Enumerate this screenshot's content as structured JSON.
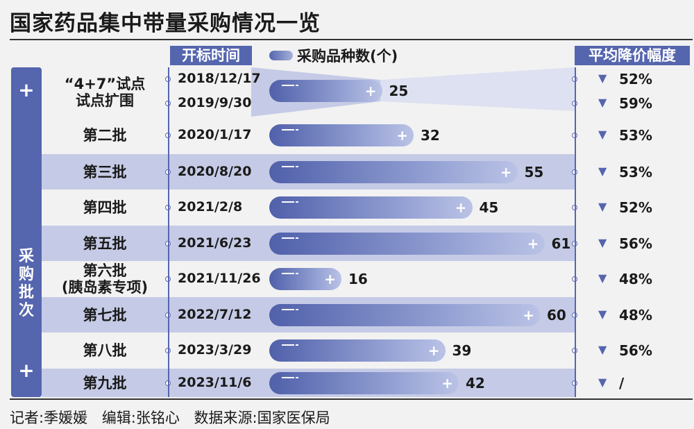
{
  "title": "国家药品集中带量采购情况一览",
  "headers": {
    "date": "开标时间",
    "count": "采购品种数(个)",
    "reduction": "平均降价幅度"
  },
  "side_label": "采购批次",
  "chart_data": {
    "type": "bar",
    "title": "国家药品集中带量采购情况一览",
    "categories": [
      "“4+7”试点 / 试点扩围",
      "第二批",
      "第三批",
      "第四批",
      "第五批",
      "第六批(胰岛素专项)",
      "第七批",
      "第八批",
      "第九批"
    ],
    "series": [
      {
        "name": "采购品种数(个)",
        "values": [
          25,
          32,
          55,
          45,
          61,
          16,
          60,
          39,
          42
        ]
      }
    ],
    "xlim": [
      0,
      65
    ]
  },
  "rows": [
    {
      "batch": [
        "“4+7”试点",
        "试点扩围"
      ],
      "dates": [
        "2018/12/17",
        "2019/9/30"
      ],
      "value": 25,
      "pcts": [
        "52%",
        "59%"
      ],
      "shaded": false
    },
    {
      "batch": [
        "第二批"
      ],
      "dates": [
        "2020/1/17"
      ],
      "value": 32,
      "pcts": [
        "53%"
      ],
      "shaded": false
    },
    {
      "batch": [
        "第三批"
      ],
      "dates": [
        "2020/8/20"
      ],
      "value": 55,
      "pcts": [
        "53%"
      ],
      "shaded": true
    },
    {
      "batch": [
        "第四批"
      ],
      "dates": [
        "2021/2/8"
      ],
      "value": 45,
      "pcts": [
        "52%"
      ],
      "shaded": false
    },
    {
      "batch": [
        "第五批"
      ],
      "dates": [
        "2021/6/23"
      ],
      "value": 61,
      "pcts": [
        "56%"
      ],
      "shaded": true
    },
    {
      "batch": [
        "第六批",
        "(胰岛素专项)"
      ],
      "dates": [
        "2021/11/26"
      ],
      "value": 16,
      "pcts": [
        "48%"
      ],
      "shaded": false
    },
    {
      "batch": [
        "第七批"
      ],
      "dates": [
        "2022/7/12"
      ],
      "value": 60,
      "pcts": [
        "48%"
      ],
      "shaded": true
    },
    {
      "batch": [
        "第八批"
      ],
      "dates": [
        "2023/3/29"
      ],
      "value": 39,
      "pcts": [
        "56%"
      ],
      "shaded": false
    },
    {
      "batch": [
        "第九批"
      ],
      "dates": [
        "2023/11/6"
      ],
      "value": 42,
      "pcts": [
        "/"
      ],
      "shaded": true
    }
  ],
  "footer": "记者:季媛媛 编辑:张铭心 数据来源:国家医保局",
  "colors": {
    "accent": "#5565ae",
    "row_shade": "#c5cbe6"
  }
}
